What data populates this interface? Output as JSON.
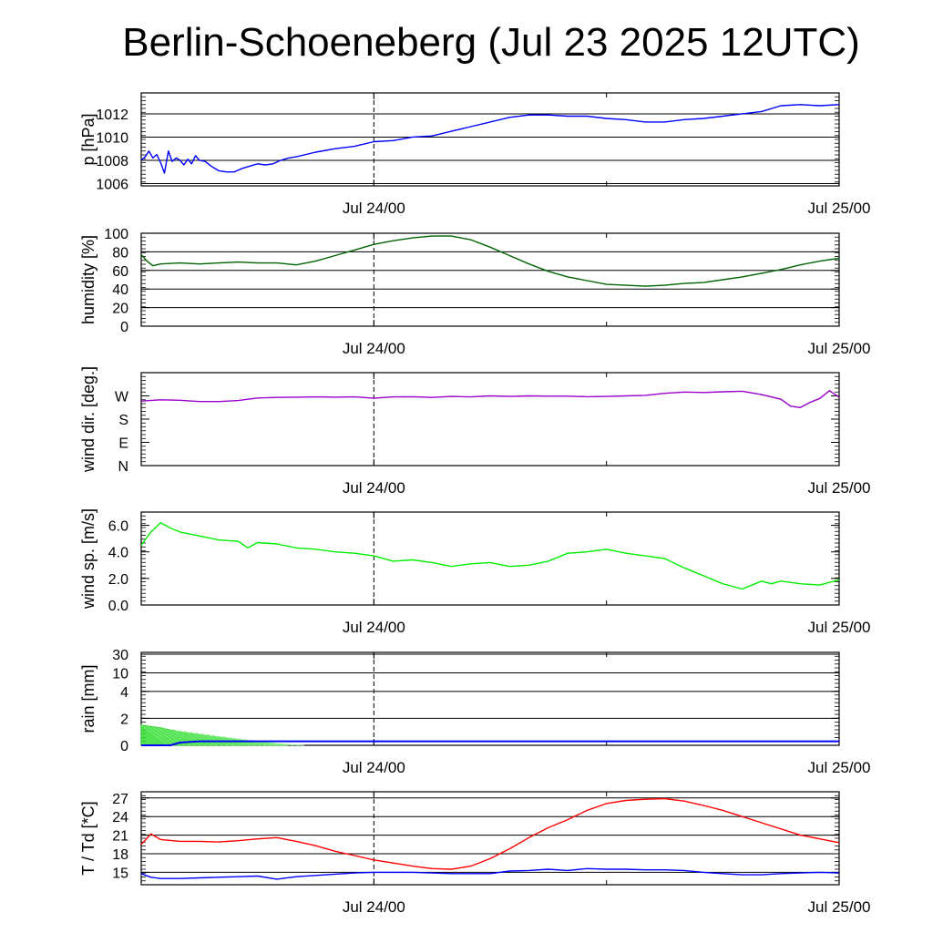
{
  "title": "Berlin-Schoeneberg (Jul 23 2025 12UTC)",
  "x_tick_labels": [
    "Jul 24/00",
    "Jul 25/00"
  ],
  "chart_data": [
    {
      "type": "line",
      "id": "pressure",
      "ylabel": "p [hPa]",
      "ylim": [
        1005.8,
        1013.8
      ],
      "yticks": [
        1006,
        1008,
        1010,
        1012
      ],
      "ytick_labels": [
        "1006",
        "1008",
        "1010",
        "1012"
      ],
      "grid": true,
      "x_unit": "hours since Jul 23 12UTC",
      "xlim": [
        0,
        36
      ],
      "series": [
        {
          "color": "#0000ff",
          "x": [
            0,
            0.2,
            0.4,
            0.6,
            0.8,
            1.0,
            1.2,
            1.4,
            1.6,
            1.8,
            2.0,
            2.2,
            2.4,
            2.6,
            2.8,
            3.0,
            3.3,
            3.6,
            4.0,
            4.4,
            4.8,
            5.2,
            5.6,
            6.0,
            6.4,
            6.8,
            7.2,
            7.6,
            8.0,
            9.0,
            10.0,
            11.0,
            12.0,
            13.0,
            14.0,
            15.0,
            16.0,
            17.0,
            18.0,
            19.0,
            20.0,
            21.0,
            22.0,
            23.0,
            24.0,
            25.0,
            26.0,
            27.0,
            28.0,
            29.0,
            30.0,
            31.0,
            32.0,
            33.0,
            34.0,
            35.0,
            36.0
          ],
          "y": [
            1008.0,
            1008.3,
            1008.8,
            1008.2,
            1008.5,
            1007.8,
            1006.9,
            1008.8,
            1007.9,
            1008.2,
            1008.0,
            1007.6,
            1008.1,
            1007.7,
            1008.4,
            1008.0,
            1007.9,
            1007.5,
            1007.1,
            1007.0,
            1007.0,
            1007.3,
            1007.5,
            1007.7,
            1007.6,
            1007.7,
            1008.0,
            1008.2,
            1008.3,
            1008.7,
            1009.0,
            1009.2,
            1009.6,
            1009.7,
            1010.0,
            1010.1,
            1010.5,
            1010.9,
            1011.3,
            1011.7,
            1011.9,
            1011.9,
            1011.8,
            1011.8,
            1011.6,
            1011.5,
            1011.3,
            1011.3,
            1011.5,
            1011.6,
            1011.8,
            1012.0,
            1012.2,
            1012.7,
            1012.8,
            1012.7,
            1012.8
          ]
        }
      ]
    },
    {
      "type": "line",
      "id": "humidity",
      "ylabel": "humidity [%]",
      "ylim": [
        0,
        100
      ],
      "yticks": [
        0,
        20,
        40,
        60,
        80,
        100
      ],
      "ytick_labels": [
        "0",
        "20",
        "40",
        "60",
        "80",
        "100"
      ],
      "grid": true,
      "x_unit": "hours since Jul 23 12UTC",
      "xlim": [
        0,
        36
      ],
      "series": [
        {
          "color": "#006400",
          "x": [
            0,
            0.3,
            0.6,
            1.0,
            2,
            3,
            4,
            5,
            6,
            7,
            8,
            9,
            10,
            11,
            12,
            13,
            14,
            15,
            16,
            17,
            18,
            19,
            20,
            21,
            22,
            23,
            24,
            25,
            26,
            27,
            28,
            29,
            30,
            31,
            32,
            33,
            34,
            35,
            36
          ],
          "y": [
            77,
            70,
            65,
            67,
            68,
            67,
            68,
            69,
            68,
            68,
            66,
            70,
            76,
            82,
            88,
            92,
            95,
            97,
            97,
            93,
            85,
            76,
            67,
            59,
            53,
            49,
            45,
            44,
            43,
            44,
            46,
            47,
            50,
            53,
            57,
            61,
            66,
            70,
            73
          ]
        }
      ]
    },
    {
      "type": "line",
      "id": "wind_direction",
      "ylabel": "wind dir. [deg.]",
      "ylim": [
        0,
        360
      ],
      "yticks": [
        0,
        90,
        180,
        270
      ],
      "ytick_labels": [
        "N",
        "E",
        "S",
        "W"
      ],
      "grid": false,
      "x_unit": "hours since Jul 23 12UTC",
      "xlim": [
        0,
        36
      ],
      "series": [
        {
          "color": "#9900cc",
          "x": [
            0,
            1,
            2,
            3,
            4,
            5,
            6,
            7,
            8,
            9,
            10,
            11,
            12,
            13,
            14,
            15,
            16,
            17,
            18,
            19,
            20,
            21,
            22,
            23,
            24,
            25,
            26,
            27,
            28,
            29,
            30,
            31,
            32,
            33,
            33.5,
            34,
            34.5,
            35,
            35.5,
            36
          ],
          "y": [
            250,
            255,
            253,
            248,
            248,
            252,
            262,
            264,
            265,
            266,
            265,
            266,
            261,
            266,
            267,
            264,
            268,
            266,
            270,
            268,
            270,
            269,
            269,
            267,
            268,
            270,
            272,
            280,
            285,
            283,
            286,
            288,
            275,
            257,
            230,
            225,
            245,
            260,
            290,
            265
          ]
        }
      ]
    },
    {
      "type": "line",
      "id": "wind_speed",
      "ylabel": "wind sp. [m/s]",
      "ylim": [
        0,
        7
      ],
      "yticks": [
        0,
        2,
        4,
        6
      ],
      "ytick_labels": [
        "0.0",
        "2.0",
        "4.0",
        "6.0"
      ],
      "grid": false,
      "x_unit": "hours since Jul 23 12UTC",
      "xlim": [
        0,
        36
      ],
      "series": [
        {
          "color": "#00ee00",
          "x": [
            0,
            0.5,
            1.0,
            1.5,
            2,
            3,
            4,
            5,
            5.5,
            6,
            7,
            8,
            9,
            10,
            11,
            12,
            13,
            14,
            15,
            16,
            17,
            18,
            19,
            20,
            21,
            22,
            23,
            24,
            25,
            26,
            27,
            28,
            29,
            30,
            31,
            32,
            32.5,
            33,
            34,
            35,
            36
          ],
          "y": [
            4.5,
            5.5,
            6.2,
            5.8,
            5.5,
            5.2,
            4.9,
            4.8,
            4.3,
            4.7,
            4.6,
            4.3,
            4.2,
            4.0,
            3.9,
            3.7,
            3.3,
            3.4,
            3.2,
            2.9,
            3.1,
            3.2,
            2.9,
            3.0,
            3.3,
            3.9,
            4.0,
            4.2,
            3.9,
            3.7,
            3.5,
            2.8,
            2.2,
            1.6,
            1.2,
            1.8,
            1.6,
            1.8,
            1.6,
            1.5,
            1.9
          ]
        }
      ]
    },
    {
      "type": "area",
      "id": "rain",
      "ylabel": "rain [mm]",
      "ylim": [
        0,
        30
      ],
      "yticks": [
        0,
        2,
        4,
        10,
        30
      ],
      "ytick_labels": [
        "0",
        "2",
        "4",
        "10",
        "30"
      ],
      "grid": true,
      "x_unit": "hours since Jul 23 12UTC",
      "xlim": [
        0,
        36
      ],
      "series": [
        {
          "color": "#33dd33",
          "x": [
            0,
            1,
            2,
            3,
            4,
            5,
            6,
            7,
            7.5
          ],
          "y": [
            1.5,
            1.3,
            1.0,
            0.8,
            0.6,
            0.4,
            0.2,
            0.05,
            0
          ]
        },
        {
          "color": "#0000ff",
          "x": [
            0,
            1,
            1.5,
            2,
            3,
            6,
            36
          ],
          "y": [
            0,
            0,
            0,
            0.2,
            0.3,
            0.3,
            0.3
          ]
        }
      ]
    },
    {
      "type": "line",
      "id": "temperature",
      "ylabel": "T / Td [*C]",
      "ylim": [
        13,
        28
      ],
      "yticks": [
        15,
        18,
        21,
        24,
        27
      ],
      "ytick_labels": [
        "15",
        "18",
        "21",
        "24",
        "27"
      ],
      "grid": true,
      "x_unit": "hours since Jul 23 12UTC",
      "xlim": [
        0,
        36
      ],
      "series": [
        {
          "color": "#ff0000",
          "x": [
            0,
            0.3,
            0.5,
            1,
            2,
            3,
            4,
            5,
            6,
            7,
            8,
            9,
            10,
            11,
            12,
            13,
            14,
            15,
            16,
            17,
            18,
            19,
            20,
            21,
            22,
            23,
            24,
            25,
            26,
            27,
            28,
            29,
            30,
            31,
            32,
            33,
            34,
            35,
            36
          ],
          "y": [
            19.5,
            20.5,
            21.2,
            20.3,
            20.0,
            20.0,
            19.9,
            20.1,
            20.4,
            20.6,
            20.0,
            19.3,
            18.4,
            17.7,
            17.0,
            16.5,
            16.0,
            15.6,
            15.5,
            16.0,
            17.2,
            18.8,
            20.6,
            22.2,
            23.5,
            25.0,
            26.1,
            26.6,
            26.8,
            26.9,
            26.5,
            25.8,
            25.0,
            24.0,
            23.0,
            22.0,
            21.0,
            20.4,
            19.8
          ]
        },
        {
          "color": "#0000ff",
          "x": [
            0,
            0.5,
            1,
            2,
            3,
            4,
            5,
            6,
            7,
            8,
            9,
            10,
            11,
            12,
            13,
            14,
            15,
            16,
            17,
            18,
            19,
            20,
            21,
            22,
            23,
            24,
            25,
            26,
            27,
            28,
            29,
            30,
            31,
            32,
            33,
            34,
            35,
            36
          ],
          "y": [
            14.8,
            14.2,
            14.0,
            14.0,
            14.1,
            14.2,
            14.3,
            14.4,
            13.9,
            14.3,
            14.5,
            14.7,
            14.9,
            15.0,
            15.0,
            15.0,
            14.9,
            14.8,
            14.8,
            14.8,
            15.2,
            15.3,
            15.5,
            15.3,
            15.6,
            15.5,
            15.5,
            15.4,
            15.4,
            15.3,
            15.0,
            14.8,
            14.6,
            14.6,
            14.8,
            14.9,
            15.0,
            14.9
          ]
        }
      ]
    }
  ]
}
